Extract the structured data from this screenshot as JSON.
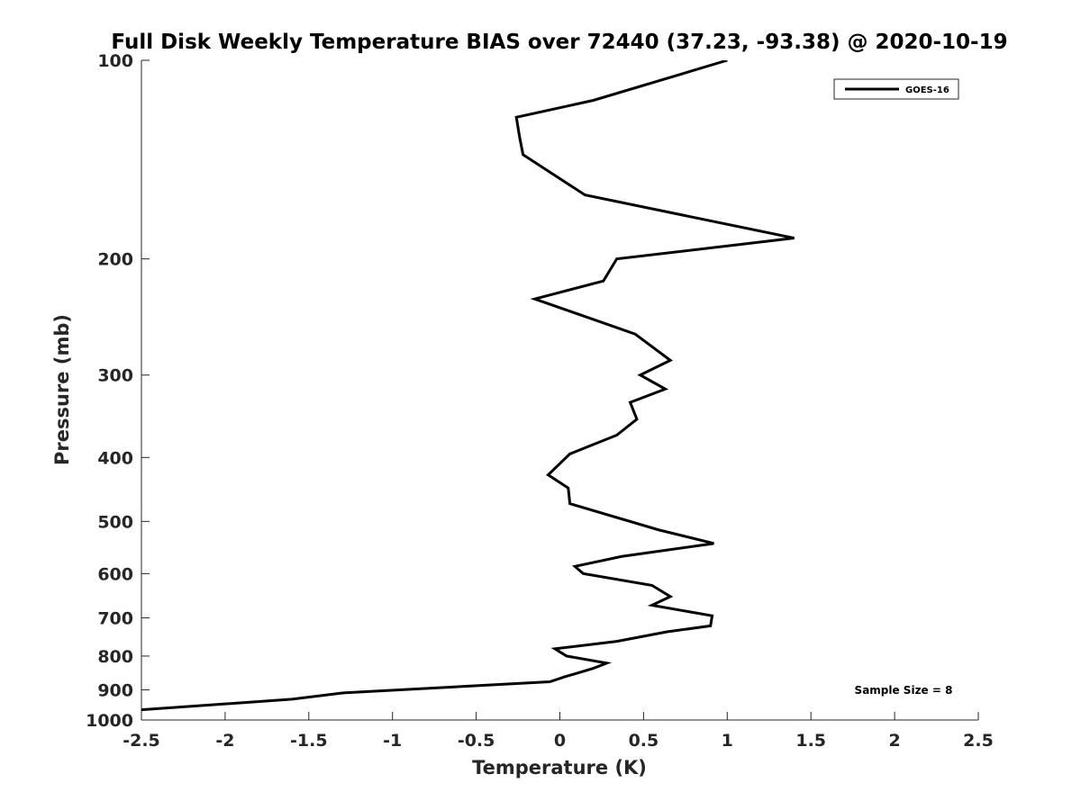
{
  "chart_data": {
    "type": "line",
    "title": "Full Disk Weekly Temperature BIAS over 72440 (37.23, -93.38) @ 2020-10-19",
    "xlabel": "Temperature (K)",
    "ylabel": "Pressure (mb)",
    "xlim": [
      -2.5,
      2.5
    ],
    "ylim": [
      100,
      1000
    ],
    "y_scale": "log",
    "y_reversed": true,
    "grid": false,
    "x_ticks": [
      -2.5,
      -2,
      -1.5,
      -1,
      -0.5,
      0,
      0.5,
      1,
      1.5,
      2,
      2.5
    ],
    "x_tick_labels": [
      "-2.5",
      "-2",
      "-1.5",
      "-1",
      "-0.5",
      "0",
      "0.5",
      "1",
      "1.5",
      "2",
      "2.5"
    ],
    "y_ticks": [
      100,
      200,
      300,
      400,
      500,
      600,
      700,
      800,
      900,
      1000
    ],
    "y_tick_labels": [
      "100",
      "200",
      "300",
      "400",
      "500",
      "600",
      "700",
      "800",
      "900",
      "1000"
    ],
    "legend_position": "top-right",
    "annotation": "Sample Size = 8",
    "series": [
      {
        "name": "GOES-16",
        "color": "#000000",
        "points": [
          {
            "x": 1.0,
            "p": 100
          },
          {
            "x": 0.2,
            "p": 115
          },
          {
            "x": -0.26,
            "p": 122
          },
          {
            "x": -0.24,
            "p": 131
          },
          {
            "x": -0.22,
            "p": 139
          },
          {
            "x": 0.15,
            "p": 160
          },
          {
            "x": 1.4,
            "p": 186
          },
          {
            "x": 0.34,
            "p": 200
          },
          {
            "x": 0.26,
            "p": 216
          },
          {
            "x": -0.15,
            "p": 230
          },
          {
            "x": 0.45,
            "p": 260
          },
          {
            "x": 0.66,
            "p": 285
          },
          {
            "x": 0.48,
            "p": 300
          },
          {
            "x": 0.63,
            "p": 315
          },
          {
            "x": 0.42,
            "p": 330
          },
          {
            "x": 0.46,
            "p": 350
          },
          {
            "x": 0.34,
            "p": 370
          },
          {
            "x": 0.06,
            "p": 395
          },
          {
            "x": -0.07,
            "p": 425
          },
          {
            "x": 0.05,
            "p": 445
          },
          {
            "x": 0.06,
            "p": 470
          },
          {
            "x": 0.59,
            "p": 515
          },
          {
            "x": 0.92,
            "p": 540
          },
          {
            "x": 0.37,
            "p": 565
          },
          {
            "x": 0.09,
            "p": 585
          },
          {
            "x": 0.14,
            "p": 600
          },
          {
            "x": 0.55,
            "p": 625
          },
          {
            "x": 0.66,
            "p": 650
          },
          {
            "x": 0.55,
            "p": 670
          },
          {
            "x": 0.91,
            "p": 695
          },
          {
            "x": 0.9,
            "p": 720
          },
          {
            "x": 0.64,
            "p": 735
          },
          {
            "x": 0.34,
            "p": 760
          },
          {
            "x": -0.03,
            "p": 780
          },
          {
            "x": 0.04,
            "p": 800
          },
          {
            "x": 0.28,
            "p": 820
          },
          {
            "x": 0.2,
            "p": 835
          },
          {
            "x": 0.03,
            "p": 860
          },
          {
            "x": -0.06,
            "p": 875
          },
          {
            "x": -1.3,
            "p": 910
          },
          {
            "x": -1.6,
            "p": 930
          },
          {
            "x": -2.5,
            "p": 965
          }
        ]
      }
    ]
  }
}
